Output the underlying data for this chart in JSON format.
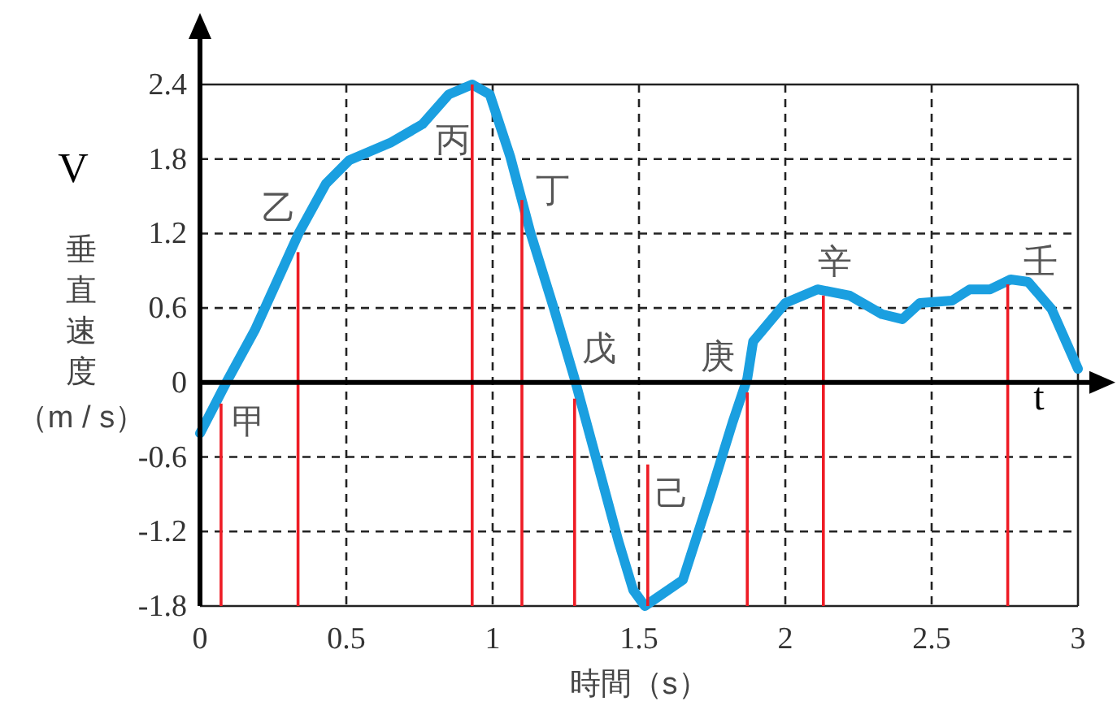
{
  "chart_data": {
    "type": "line",
    "xlabel": "時間（s）",
    "ylabel": "垂直速度（m / s）",
    "xlim": [
      0,
      3
    ],
    "ylim": [
      -1.8,
      2.4
    ],
    "xticks": [
      0,
      0.5,
      1,
      1.5,
      2,
      2.5,
      3
    ],
    "yticks": [
      -1.8,
      -1.2,
      -0.6,
      0,
      0.6,
      1.2,
      1.8,
      2.4
    ],
    "grid": true,
    "series": [
      {
        "type": "line",
        "color": "#1a9fe0",
        "x": [
          0,
          0.09,
          0.187,
          0.337,
          0.43,
          0.51,
          0.65,
          0.76,
          0.85,
          0.93,
          0.99,
          1.06,
          1.13,
          1.21,
          1.28,
          1.35,
          1.43,
          1.48,
          1.52,
          1.65,
          1.74,
          1.82,
          1.87,
          1.89,
          2.0,
          2.11,
          2.22,
          2.33,
          2.4,
          2.46,
          2.57,
          2.63,
          2.7,
          2.77,
          2.83,
          2.91,
          3.0
        ],
        "values": [
          -0.41,
          0,
          0.42,
          1.2,
          1.6,
          1.79,
          1.93,
          2.08,
          2.32,
          2.4,
          2.32,
          1.82,
          1.2,
          0.59,
          0.03,
          -0.58,
          -1.28,
          -1.67,
          -1.8,
          -1.59,
          -0.93,
          -0.32,
          0.03,
          0.33,
          0.64,
          0.75,
          0.7,
          0.55,
          0.51,
          0.64,
          0.66,
          0.75,
          0.75,
          0.83,
          0.81,
          0.59,
          0.11
        ]
      },
      {
        "type": "bar",
        "color": "#ee1c25",
        "x": [
          0.072,
          0.335,
          0.93,
          1.1,
          1.28,
          1.53,
          1.87,
          2.13,
          2.76
        ],
        "base": [
          -1.8,
          -1.8,
          -1.8,
          -1.8,
          -1.8,
          -1.8,
          -1.8,
          -1.8,
          -1.8
        ],
        "values": [
          1.63,
          2.85,
          4.2,
          3.27,
          1.67,
          1.14,
          1.72,
          2.5,
          2.59
        ]
      }
    ],
    "annotations": [
      {
        "text": "甲",
        "x": 0.072,
        "y": -0.17
      },
      {
        "text": "乙",
        "x": 0.335,
        "y": 1.05
      },
      {
        "text": "丙",
        "x": 0.93,
        "y": 2.4
      },
      {
        "text": "丁",
        "x": 1.1,
        "y": 1.47
      },
      {
        "text": "戊",
        "x": 1.28,
        "y": -0.13
      },
      {
        "text": "己",
        "x": 1.53,
        "y": -0.66
      },
      {
        "text": "庚",
        "x": 1.87,
        "y": -0.08
      },
      {
        "text": "辛",
        "x": 2.13,
        "y": 0.7
      },
      {
        "text": "壬",
        "x": 2.76,
        "y": 0.79
      },
      "V",
      "t"
    ]
  }
}
